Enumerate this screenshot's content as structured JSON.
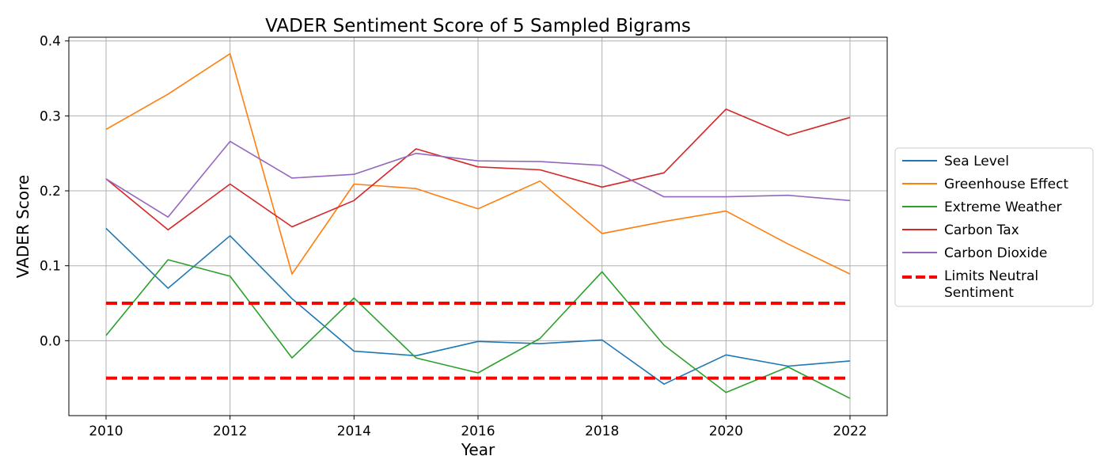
{
  "chart_data": {
    "type": "line",
    "title": "VADER Sentiment Score of 5 Sampled Bigrams",
    "xlabel": "Year",
    "ylabel": "VADER Score",
    "x": [
      2010,
      2011,
      2012,
      2013,
      2014,
      2015,
      2016,
      2017,
      2018,
      2019,
      2020,
      2021,
      2022
    ],
    "xlim": [
      2009.4,
      2022.6
    ],
    "ylim": [
      -0.1,
      0.405
    ],
    "xticks": [
      2010,
      2012,
      2014,
      2016,
      2018,
      2020,
      2022
    ],
    "xtick_labels": [
      "2010",
      "2012",
      "2014",
      "2016",
      "2018",
      "2020",
      "2022"
    ],
    "yticks": [
      0.0,
      0.1,
      0.2,
      0.3,
      0.4
    ],
    "ytick_labels": [
      "0.0",
      "0.1",
      "0.2",
      "0.3",
      "0.4"
    ],
    "grid": true,
    "legend_position": "outside-right",
    "series": [
      {
        "name": "Sea Level",
        "color": "#1f77b4",
        "style": "solid",
        "values": [
          0.15,
          0.07,
          0.14,
          0.056,
          -0.014,
          -0.02,
          -0.001,
          -0.004,
          0.001,
          -0.058,
          -0.019,
          -0.034,
          -0.027
        ]
      },
      {
        "name": "Greenhouse Effect",
        "color": "#ff7f0e",
        "style": "solid",
        "values": [
          0.282,
          0.329,
          0.383,
          0.089,
          0.209,
          0.203,
          0.176,
          0.213,
          0.143,
          0.159,
          0.173,
          0.129,
          0.089
        ]
      },
      {
        "name": "Extreme Weather",
        "color": "#2ca02c",
        "style": "solid",
        "values": [
          0.007,
          0.108,
          0.086,
          -0.023,
          0.057,
          -0.023,
          -0.043,
          0.003,
          0.092,
          -0.006,
          -0.069,
          -0.035,
          -0.077
        ]
      },
      {
        "name": "Carbon Tax",
        "color": "#d62728",
        "style": "solid",
        "values": [
          0.216,
          0.148,
          0.209,
          0.152,
          0.187,
          0.256,
          0.232,
          0.228,
          0.205,
          0.224,
          0.309,
          0.274,
          0.298
        ]
      },
      {
        "name": "Carbon Dioxide",
        "color": "#9467bd",
        "style": "solid",
        "values": [
          0.216,
          0.165,
          0.266,
          0.217,
          0.222,
          0.25,
          0.24,
          0.239,
          0.234,
          0.192,
          0.192,
          0.194,
          0.187
        ]
      }
    ],
    "reference_lines": {
      "name_lines": [
        "Limits Neutral",
        "Sentiment"
      ],
      "color": "#ff0000",
      "style": "dashed",
      "y_values": [
        0.05,
        -0.05
      ],
      "x_range": [
        2010,
        2022
      ]
    }
  }
}
